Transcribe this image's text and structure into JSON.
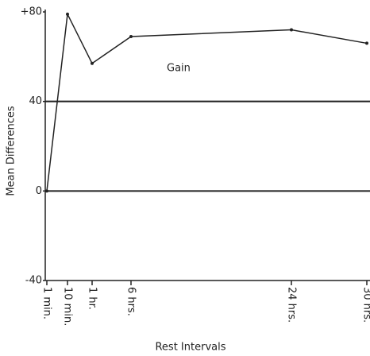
{
  "chart_data": {
    "type": "line",
    "ylabel": "Mean Differences",
    "xlabel": "Rest Intervals",
    "annotation": "Gain",
    "categories": [
      "1 min.",
      "10 min.",
      "1 hr.",
      "6 hrs.",
      "24 hrs.",
      "30 hrs."
    ],
    "values": [
      0,
      79,
      57,
      69,
      72,
      66
    ],
    "color": "#222222",
    "ylim": [
      -40,
      80
    ],
    "yticks": [
      -40,
      0,
      40,
      {
        "value": 80,
        "label": "+80"
      }
    ],
    "grid": true
  }
}
